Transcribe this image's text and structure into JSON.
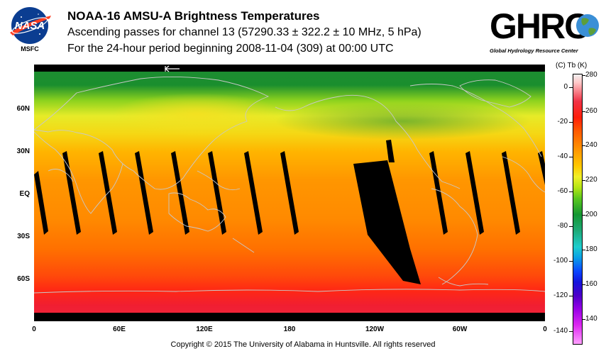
{
  "header": {
    "title": "NOAA-16 AMSU-A Brightness Temperatures",
    "line2": "Ascending passes for channel 13 (57290.33 ± 322.2 ± 10 MHz, 5 hPa)",
    "line3": "For the 24-hour period beginning 2008-11-04 (309) at 00:00 UTC"
  },
  "nasa_logo": {
    "label": "NASA",
    "org": "MSFC"
  },
  "ghrc_logo": {
    "text": "GHRC",
    "subtitle": "Global Hydrology Resource Center"
  },
  "map": {
    "lat_labels": [
      "60N",
      "30N",
      "EQ",
      "30S",
      "60S"
    ],
    "lon_labels": [
      "0",
      "60E",
      "120E",
      "180",
      "120W",
      "60W",
      "0"
    ],
    "direction_arrow": "pass-direction-arrow"
  },
  "colorbar": {
    "header": "(C)  Tb  (K)",
    "celsius_ticks": [
      "0",
      "-20",
      "-40",
      "-60",
      "-80",
      "-100",
      "-120",
      "-140"
    ],
    "kelvin_ticks": [
      "280",
      "260",
      "240",
      "220",
      "200",
      "180",
      "160",
      "140"
    ],
    "colors": [
      "#f0f0f0",
      "#f03246",
      "#ff5a00",
      "#ffc800",
      "#b4e614",
      "#149632",
      "#1ecdcd",
      "#0a46ff",
      "#9600e6",
      "#ffa0ff"
    ]
  },
  "footer": {
    "copyright": "Copyright © 2015 The University of Alabama in Huntsville.  All rights reserved"
  }
}
